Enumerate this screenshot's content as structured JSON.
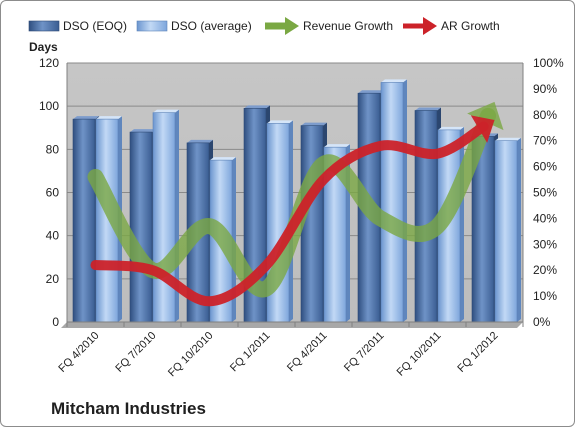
{
  "company_title": "Mitcham Industries",
  "chart_data": {
    "type": "bar",
    "ylabel": "Days",
    "categories": [
      "FQ 4/2010",
      "FQ 7/2010",
      "FQ 10/2010",
      "FQ 1/2011",
      "FQ 4/2011",
      "FQ 7/2011",
      "FQ 10/2011",
      "FQ 1/2012"
    ],
    "ylim": [
      0,
      120
    ],
    "yticks": [
      0,
      20,
      40,
      60,
      80,
      100,
      120
    ],
    "y2lim": [
      0,
      1
    ],
    "y2ticks": [
      "0%",
      "10%",
      "20%",
      "30%",
      "40%",
      "50%",
      "60%",
      "70%",
      "80%",
      "90%",
      "100%"
    ],
    "grid": true,
    "legend_position": "top",
    "series": [
      {
        "name": "DSO (EOQ)",
        "type": "bar",
        "axis": "left",
        "color": "#4a6fa5",
        "values": [
          94,
          88,
          83,
          99,
          91,
          106,
          98,
          86
        ]
      },
      {
        "name": "DSO (average)",
        "type": "bar",
        "axis": "left",
        "color": "#8fb4e3",
        "values": [
          94,
          97,
          75,
          92,
          81,
          111,
          89,
          84
        ]
      },
      {
        "name": "Revenue Growth",
        "type": "line",
        "axis": "right",
        "color": "#7aa843",
        "values": [
          0.56,
          0.2,
          0.37,
          0.13,
          0.61,
          0.4,
          0.37,
          0.85
        ]
      },
      {
        "name": "AR Growth",
        "type": "line",
        "axis": "right",
        "color": "#cc2229",
        "values": [
          0.22,
          0.2,
          0.08,
          0.22,
          0.55,
          0.68,
          0.65,
          0.78
        ]
      }
    ]
  }
}
